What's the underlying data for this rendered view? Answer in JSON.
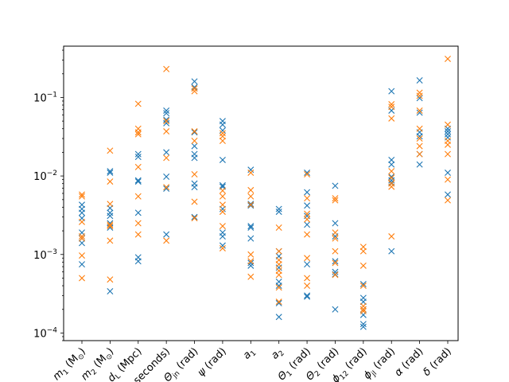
{
  "chart_data": {
    "type": "scatter",
    "title": "",
    "xlabel": "",
    "ylabel": "",
    "yscale": "log",
    "ylim": [
      8e-05,
      0.45
    ],
    "grid": false,
    "legend": "none",
    "categories": [
      {
        "base": "m",
        "sub": "1",
        "unit": " (M",
        "unitSub": "⊙",
        "tail": ")"
      },
      {
        "base": "m",
        "sub": "2",
        "unit": " (M",
        "unitSub": "⊙",
        "tail": ")"
      },
      {
        "base": "d",
        "sub": "L",
        "unit": " (Mpc)",
        "unitSub": "",
        "tail": ""
      },
      {
        "base": "",
        "sub": "",
        "unit": "seconds)",
        "unitSub": "",
        "tail": ""
      },
      {
        "base": "Θ",
        "sub": "jn",
        "unit": " (rad)",
        "unitSub": "",
        "tail": ""
      },
      {
        "base": "ψ",
        "sub": "",
        "unit": " (rad)",
        "unitSub": "",
        "tail": ""
      },
      {
        "base": "a",
        "sub": "1",
        "unit": "",
        "unitSub": "",
        "tail": ""
      },
      {
        "base": "a",
        "sub": "2",
        "unit": "",
        "unitSub": "",
        "tail": ""
      },
      {
        "base": "Θ",
        "sub": "1",
        "unit": " (rad)",
        "unitSub": "",
        "tail": ""
      },
      {
        "base": "Θ",
        "sub": "2",
        "unit": " (rad)",
        "unitSub": "",
        "tail": ""
      },
      {
        "base": "ϕ",
        "sub": "12",
        "unit": " (rad)",
        "unitSub": "",
        "tail": ""
      },
      {
        "base": "ϕ",
        "sub": "jl",
        "unit": " (rad)",
        "unitSub": "",
        "tail": ""
      },
      {
        "base": "α",
        "sub": "",
        "unit": " (rad)",
        "unitSub": "",
        "tail": ""
      },
      {
        "base": "δ",
        "sub": "",
        "unit": " (rad)",
        "unitSub": "",
        "tail": ""
      }
    ],
    "yticks": [
      {
        "value": 0.0001,
        "mantissa": "10",
        "exp": "−4"
      },
      {
        "value": 0.001,
        "mantissa": "10",
        "exp": "−3"
      },
      {
        "value": 0.01,
        "mantissa": "10",
        "exp": "−2"
      },
      {
        "value": 0.1,
        "mantissa": "10",
        "exp": "−1"
      }
    ],
    "series": [
      {
        "color": "#1f77b4",
        "marker": "x",
        "values": [
          [
            0.0043,
            0.0038,
            0.0034,
            0.0029,
            0.0019,
            0.0016,
            0.0014,
            0.00075
          ],
          [
            0.0115,
            0.011,
            0.0039,
            0.0034,
            0.0031,
            0.0025,
            0.0022,
            0.00034
          ],
          [
            0.019,
            0.0175,
            0.0088,
            0.0085,
            0.0034,
            0.00092,
            0.00082
          ],
          [
            0.068,
            0.063,
            0.052,
            0.047,
            0.02,
            0.0098,
            0.0069,
            0.0018
          ],
          [
            0.16,
            0.135,
            0.036,
            0.024,
            0.019,
            0.017,
            0.008,
            0.0072,
            0.003
          ],
          [
            0.05,
            0.045,
            0.038,
            0.016,
            0.0076,
            0.0073,
            0.0038,
            0.0019,
            0.0017,
            0.0013
          ],
          [
            0.012,
            0.0044,
            0.0042,
            0.0023,
            0.0022,
            0.0016,
            0.00078,
            0.00072
          ],
          [
            0.0038,
            0.0035,
            0.0011,
            0.00095,
            0.00068,
            0.00045,
            0.0004,
            0.00024,
            0.00016
          ],
          [
            0.011,
            0.0062,
            0.0042,
            0.0031,
            0.0024,
            0.00075,
            0.0003,
            0.00029
          ],
          [
            0.0075,
            0.0025,
            0.0017,
            0.00082,
            0.0006,
            0.00056,
            0.0002
          ],
          [
            0.00042,
            0.00028,
            0.00025,
            0.0002,
            0.00017,
            0.00013,
            0.00012
          ],
          [
            0.12,
            0.068,
            0.016,
            0.014,
            0.0098,
            0.0088,
            0.0082,
            0.0011
          ],
          [
            0.165,
            0.098,
            0.064,
            0.036,
            0.032,
            0.019,
            0.014
          ],
          [
            0.04,
            0.037,
            0.034,
            0.031,
            0.011,
            0.0058
          ]
        ]
      },
      {
        "color": "#ff7f0e",
        "marker": "x",
        "values": [
          [
            0.0058,
            0.0055,
            0.0026,
            0.0017,
            0.0016,
            0.00097,
            0.0005
          ],
          [
            0.021,
            0.0085,
            0.0044,
            0.0024,
            0.0023,
            0.0015,
            0.00048
          ],
          [
            0.083,
            0.04,
            0.036,
            0.034,
            0.013,
            0.0055,
            0.0025,
            0.0018
          ],
          [
            0.23,
            0.05,
            0.037,
            0.017,
            0.0072,
            0.0015
          ],
          [
            0.13,
            0.12,
            0.037,
            0.028,
            0.0105,
            0.0047,
            0.0029
          ],
          [
            0.035,
            0.032,
            0.028,
            0.0065,
            0.0055,
            0.0043,
            0.0035,
            0.0023,
            0.0012
          ],
          [
            0.011,
            0.0066,
            0.0055,
            0.0043,
            0.001,
            0.00082,
            0.00052
          ],
          [
            0.0022,
            0.0011,
            0.00085,
            0.00075,
            0.00062,
            0.00055,
            0.00038,
            0.00025
          ],
          [
            0.0105,
            0.0052,
            0.0033,
            0.0028,
            0.0018,
            0.0009,
            0.0005,
            0.0004
          ],
          [
            0.0052,
            0.0049,
            0.0019,
            0.0016,
            0.0011,
            0.00078,
            0.00055
          ],
          [
            0.00125,
            0.0011,
            0.00072,
            0.0004,
            0.00022,
            0.0002,
            0.00019
          ],
          [
            0.082,
            0.076,
            0.054,
            0.0115,
            0.0095,
            0.008,
            0.0073,
            0.0017
          ],
          [
            0.115,
            0.105,
            0.068,
            0.04,
            0.03,
            0.024,
            0.019
          ],
          [
            0.31,
            0.045,
            0.028,
            0.025,
            0.019,
            0.009,
            0.0049
          ]
        ]
      }
    ]
  }
}
